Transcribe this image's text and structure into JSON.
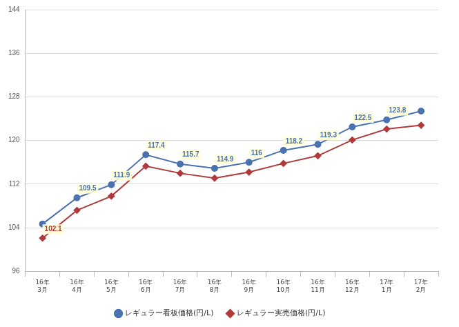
{
  "chart_data": {
    "type": "line",
    "categories": [
      "16年\n3月",
      "16年\n4月",
      "16年\n5月",
      "16年\n6月",
      "16年\n7月",
      "16年\n8月",
      "16年\n9月",
      "16年\n10月",
      "16年\n11月",
      "16年\n12月",
      "17年\n1月",
      "17年\n2月"
    ],
    "series": [
      {
        "name": "レギュラー看板価格(円/L)",
        "color": "#4a72b0",
        "marker": "circle",
        "values": [
          104.7,
          109.5,
          111.9,
          117.4,
          115.7,
          114.9,
          116,
          118.2,
          119.3,
          122.5,
          123.8,
          125.4
        ],
        "value_labels": [
          null,
          "109.5",
          "111.9",
          "117.4",
          "115.7",
          "114.9",
          "116",
          "118.2",
          "119.3",
          "122.5",
          "123.8",
          null
        ]
      },
      {
        "name": "レギュラー実売価格(円/L)",
        "color": "#b03a3a",
        "marker": "diamond",
        "values": [
          102.1,
          107.2,
          109.8,
          115.3,
          114.0,
          113.1,
          114.2,
          115.8,
          117.2,
          120.1,
          122.1,
          122.8
        ],
        "value_labels": [
          "102.1",
          null,
          null,
          null,
          null,
          null,
          null,
          null,
          null,
          null,
          null,
          null
        ]
      }
    ],
    "ylim": [
      96,
      144
    ],
    "yticks": [
      96,
      104,
      112,
      120,
      128,
      136,
      144
    ],
    "grid": true,
    "legend": "bottom",
    "data_labels": true
  }
}
